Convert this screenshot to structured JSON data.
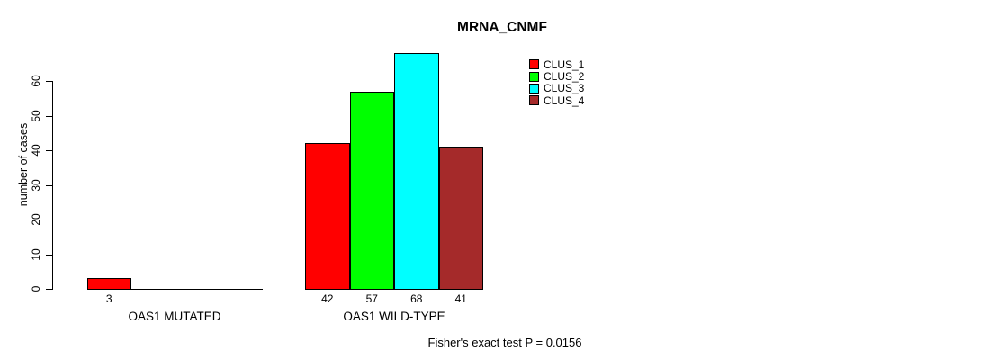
{
  "chart_data": {
    "type": "bar",
    "title": "MRNA_CNMF",
    "ylabel": "number of cases",
    "xlabel": "",
    "ylim": [
      0,
      60
    ],
    "yticks": [
      0,
      10,
      20,
      30,
      40,
      50,
      60
    ],
    "grid": false,
    "legend_position": "top-right",
    "categories": [
      "OAS1 MUTATED",
      "OAS1 WILD-TYPE"
    ],
    "series": [
      {
        "name": "CLUS_1",
        "color": "#ff0000",
        "values": [
          3,
          42
        ]
      },
      {
        "name": "CLUS_2",
        "color": "#00ff00",
        "values": [
          0,
          57
        ]
      },
      {
        "name": "CLUS_3",
        "color": "#00ffff",
        "values": [
          0,
          68
        ]
      },
      {
        "name": "CLUS_4",
        "color": "#a52a2a",
        "values": [
          0,
          41
        ]
      }
    ],
    "groups": [
      {
        "label": "OAS1 MUTATED",
        "values": [
          3,
          0,
          0,
          0
        ],
        "bar_labels": [
          "3",
          "",
          "",
          ""
        ]
      },
      {
        "label": "OAS1 WILD-TYPE",
        "values": [
          42,
          57,
          68,
          41
        ],
        "bar_labels": [
          "42",
          "57",
          "68",
          "41"
        ]
      }
    ],
    "annotation": "Fisher's exact test P = 0.0156"
  }
}
